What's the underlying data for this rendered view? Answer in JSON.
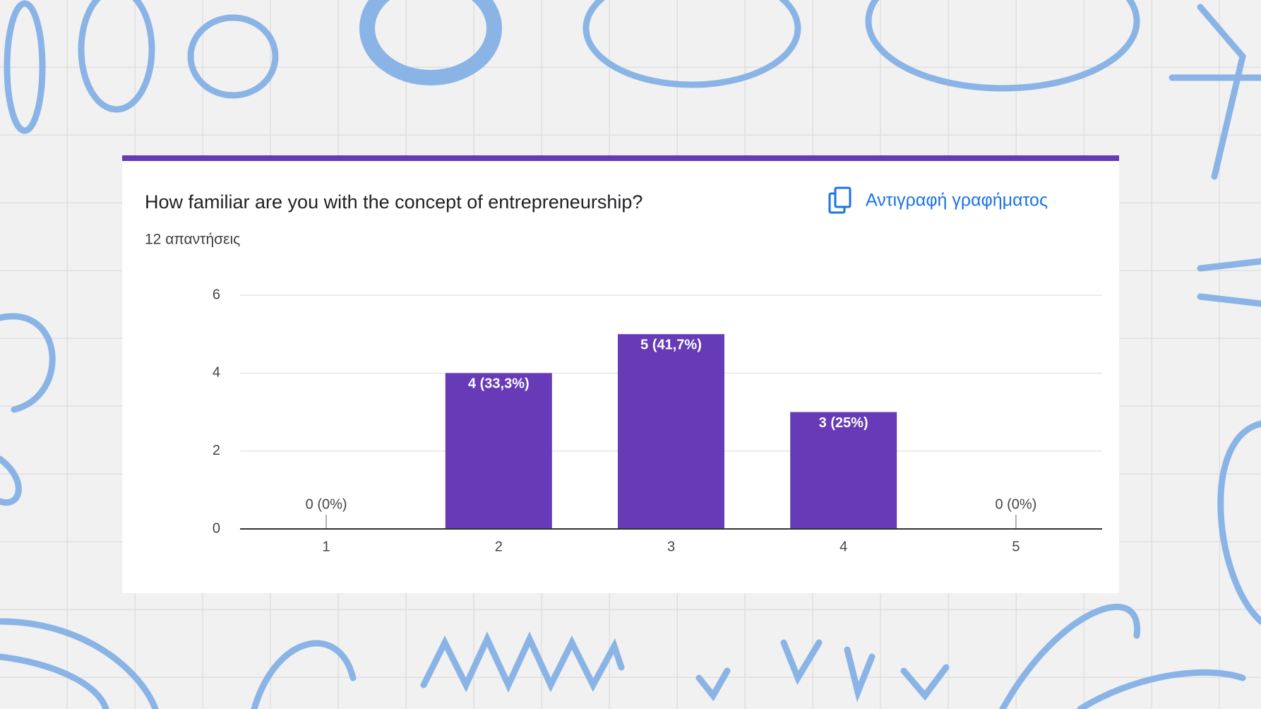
{
  "chart_data": {
    "type": "bar",
    "title": "How familiar are you with the concept of entrepreneurship?",
    "subtitle": "12 απαντήσεις",
    "categories": [
      "1",
      "2",
      "3",
      "4",
      "5"
    ],
    "values": [
      0,
      4,
      5,
      3,
      0
    ],
    "value_labels": [
      "0 (0%)",
      "4 (33,3%)",
      "5 (41,7%)",
      "3 (25%)",
      "0 (0%)"
    ],
    "color": "#673ab7",
    "ylim": [
      0,
      6
    ],
    "yticks": [
      0,
      2,
      4,
      6
    ],
    "grid": true
  },
  "copy_button": "Αντιγραφή γραφήματος"
}
